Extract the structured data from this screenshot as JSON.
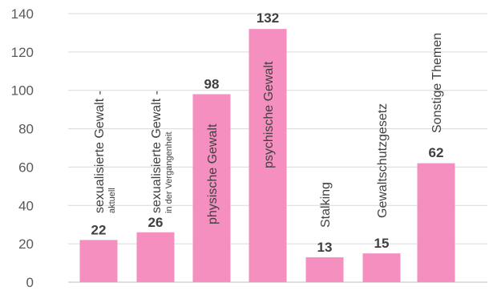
{
  "chart_data": {
    "type": "bar",
    "title": "",
    "xlabel": "",
    "ylabel": "",
    "ylim": [
      0,
      140
    ],
    "yticks": [
      0,
      20,
      40,
      60,
      80,
      100,
      120,
      140
    ],
    "grid": true,
    "legend": "none",
    "bar_color": "#f48fbf",
    "categories": [
      {
        "label": "sexualisierte Gewalt -",
        "sub": "aktuell"
      },
      {
        "label": "sexualisierte Gewalt -",
        "sub": "in der Vergangenheit"
      },
      {
        "label": "physische Gewalt",
        "sub": ""
      },
      {
        "label": "psychische Gewalt",
        "sub": ""
      },
      {
        "label": "Stalking",
        "sub": ""
      },
      {
        "label": "Gewaltschutzgesetz",
        "sub": ""
      },
      {
        "label": "Sonstige Themen",
        "sub": ""
      }
    ],
    "values": [
      22,
      26,
      98,
      132,
      13,
      15,
      62
    ]
  }
}
